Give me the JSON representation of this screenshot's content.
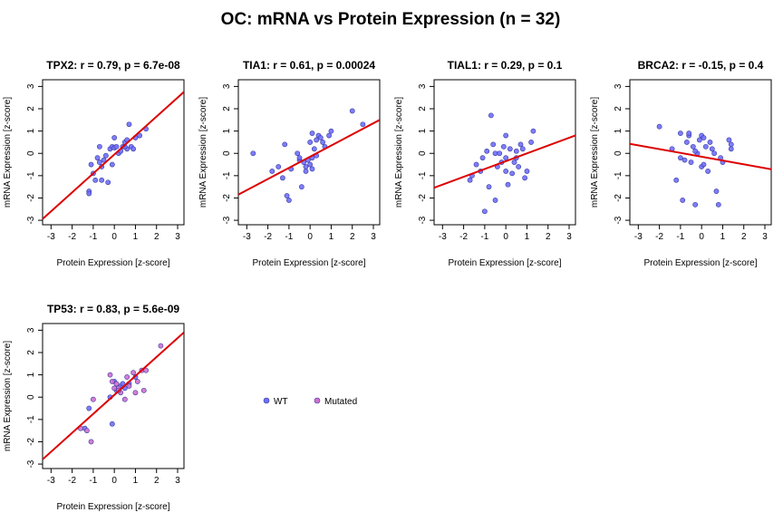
{
  "page_title": "OC: mRNA vs Protein Expression (n = 32)",
  "colors": {
    "wt": "#6f6fff",
    "mutated": "#d070d0",
    "fit": "#dd0000"
  },
  "legend": [
    {
      "label": "WT",
      "color": "#6f6fff"
    },
    {
      "label": "Mutated",
      "color": "#d070d0"
    }
  ],
  "chart_data": [
    {
      "type": "scatter",
      "title": "TPX2: r = 0.79, p = 6.7e-08",
      "xlabel": "Protein Expression [z-score]",
      "ylabel": "mRNA Expression [z-score]",
      "xlim": [
        -3.4,
        3.3
      ],
      "ylim": [
        -3.2,
        3.3
      ],
      "xticks": [
        -3,
        -2,
        -1,
        0,
        1,
        2,
        3
      ],
      "yticks": [
        -3,
        -2,
        -1,
        0,
        1,
        2,
        3
      ],
      "fit": {
        "slope": 0.85,
        "intercept": -0.05
      },
      "series": [
        {
          "group": "wt",
          "points": [
            [
              -1.2,
              -1.7
            ],
            [
              -1.2,
              -1.8
            ],
            [
              -1.1,
              -0.5
            ],
            [
              -1.0,
              -0.9
            ],
            [
              -0.9,
              -1.2
            ],
            [
              -0.8,
              -0.2
            ],
            [
              -0.7,
              -0.4
            ],
            [
              -0.7,
              0.3
            ],
            [
              -0.6,
              -0.6
            ],
            [
              -0.6,
              -1.2
            ],
            [
              -0.5,
              -0.3
            ],
            [
              -0.4,
              -0.1
            ],
            [
              -0.3,
              -1.3
            ],
            [
              -0.2,
              0.2
            ],
            [
              -0.1,
              0.3
            ],
            [
              0.0,
              0.25
            ],
            [
              0.0,
              0.7
            ],
            [
              0.1,
              0.3
            ],
            [
              0.2,
              0.0
            ],
            [
              0.3,
              0.1
            ],
            [
              0.4,
              0.3
            ],
            [
              0.5,
              0.5
            ],
            [
              0.6,
              0.2
            ],
            [
              0.6,
              0.6
            ],
            [
              0.7,
              1.3
            ],
            [
              0.8,
              0.3
            ],
            [
              0.9,
              0.2
            ],
            [
              1.0,
              0.7
            ],
            [
              1.2,
              0.8
            ],
            [
              1.5,
              1.1
            ],
            [
              -0.1,
              -0.5
            ],
            [
              0.5,
              0.3
            ]
          ]
        }
      ]
    },
    {
      "type": "scatter",
      "title": "TIA1: r = 0.61, p = 0.00024",
      "xlabel": "Protein Expression [z-score]",
      "ylabel": "mRNA Expression [z-score]",
      "xlim": [
        -3.4,
        3.3
      ],
      "ylim": [
        -3.2,
        3.3
      ],
      "xticks": [
        -3,
        -2,
        -1,
        0,
        1,
        2,
        3
      ],
      "yticks": [
        -3,
        -2,
        -1,
        0,
        1,
        2,
        3
      ],
      "fit": {
        "slope": 0.5,
        "intercept": -0.15
      },
      "series": [
        {
          "group": "wt",
          "points": [
            [
              -2.7,
              0.0
            ],
            [
              -1.8,
              -0.8
            ],
            [
              -1.5,
              -0.6
            ],
            [
              -1.3,
              -1.1
            ],
            [
              -1.2,
              0.4
            ],
            [
              -1.1,
              -1.9
            ],
            [
              -1.0,
              -2.1
            ],
            [
              -0.9,
              -0.7
            ],
            [
              -0.6,
              0.0
            ],
            [
              -0.5,
              -0.3
            ],
            [
              -0.4,
              -1.5
            ],
            [
              -0.3,
              -0.4
            ],
            [
              -0.2,
              -0.6
            ],
            [
              -0.1,
              -0.3
            ],
            [
              0.0,
              0.5
            ],
            [
              0.0,
              -0.5
            ],
            [
              0.1,
              0.9
            ],
            [
              0.1,
              -0.2
            ],
            [
              0.2,
              0.2
            ],
            [
              0.3,
              0.6
            ],
            [
              0.4,
              0.8
            ],
            [
              0.5,
              0.7
            ],
            [
              0.6,
              0.5
            ],
            [
              0.7,
              0.3
            ],
            [
              0.9,
              0.8
            ],
            [
              1.0,
              1.0
            ],
            [
              2.0,
              1.9
            ],
            [
              2.5,
              1.3
            ],
            [
              -0.2,
              -0.8
            ],
            [
              0.3,
              -0.1
            ],
            [
              -0.5,
              -0.2
            ],
            [
              0.1,
              -0.7
            ]
          ]
        }
      ]
    },
    {
      "type": "scatter",
      "title": "TIAL1: r = 0.29, p = 0.1",
      "xlabel": "Protein Expression [z-score]",
      "ylabel": "mRNA Expression [z-score]",
      "xlim": [
        -3.4,
        3.3
      ],
      "ylim": [
        -3.2,
        3.3
      ],
      "xticks": [
        -3,
        -2,
        -1,
        0,
        1,
        2,
        3
      ],
      "yticks": [
        -3,
        -2,
        -1,
        0,
        1,
        2,
        3
      ],
      "fit": {
        "slope": 0.35,
        "intercept": -0.35
      },
      "series": [
        {
          "group": "wt",
          "points": [
            [
              -1.7,
              -1.2
            ],
            [
              -1.6,
              -1.0
            ],
            [
              -1.4,
              -0.5
            ],
            [
              -1.2,
              -0.8
            ],
            [
              -1.0,
              -2.6
            ],
            [
              -0.9,
              0.1
            ],
            [
              -0.8,
              -1.5
            ],
            [
              -0.7,
              1.7
            ],
            [
              -0.6,
              0.4
            ],
            [
              -0.5,
              0.0
            ],
            [
              -0.4,
              -0.6
            ],
            [
              -0.3,
              0.0
            ],
            [
              -0.2,
              -0.4
            ],
            [
              -0.1,
              0.3
            ],
            [
              0.0,
              -0.2
            ],
            [
              0.0,
              -0.8
            ],
            [
              0.1,
              -1.4
            ],
            [
              0.2,
              0.2
            ],
            [
              0.3,
              -0.9
            ],
            [
              0.4,
              -0.4
            ],
            [
              0.5,
              0.1
            ],
            [
              0.6,
              -0.6
            ],
            [
              0.7,
              0.4
            ],
            [
              0.8,
              0.2
            ],
            [
              0.9,
              -1.1
            ],
            [
              1.0,
              -0.8
            ],
            [
              1.2,
              0.5
            ],
            [
              1.3,
              1.0
            ],
            [
              0.0,
              0.8
            ],
            [
              0.5,
              -0.2
            ],
            [
              -1.1,
              -0.2
            ],
            [
              -0.5,
              -2.1
            ]
          ]
        }
      ]
    },
    {
      "type": "scatter",
      "title": "BRCA2: r = -0.15, p = 0.4",
      "xlabel": "Protein Expression [z-score]",
      "ylabel": "mRNA Expression [z-score]",
      "xlim": [
        -3.4,
        3.3
      ],
      "ylim": [
        -3.2,
        3.3
      ],
      "xticks": [
        -3,
        -2,
        -1,
        0,
        1,
        2,
        3
      ],
      "yticks": [
        -3,
        -2,
        -1,
        0,
        1,
        2,
        3
      ],
      "fit": {
        "slope": -0.17,
        "intercept": -0.15
      },
      "series": [
        {
          "group": "wt",
          "points": [
            [
              -2.0,
              1.2
            ],
            [
              -1.4,
              0.2
            ],
            [
              -1.2,
              -1.2
            ],
            [
              -1.0,
              0.9
            ],
            [
              -1.0,
              -0.2
            ],
            [
              -0.9,
              -2.1
            ],
            [
              -0.8,
              -0.3
            ],
            [
              -0.7,
              0.5
            ],
            [
              -0.6,
              0.8
            ],
            [
              -0.6,
              0.9
            ],
            [
              -0.5,
              -0.4
            ],
            [
              -0.4,
              0.3
            ],
            [
              -0.3,
              -2.3
            ],
            [
              -0.2,
              0.0
            ],
            [
              -0.1,
              0.6
            ],
            [
              0.0,
              -0.6
            ],
            [
              0.0,
              0.8
            ],
            [
              0.1,
              -0.5
            ],
            [
              0.2,
              0.3
            ],
            [
              0.3,
              -0.8
            ],
            [
              0.4,
              0.5
            ],
            [
              0.5,
              0.2
            ],
            [
              0.6,
              0.0
            ],
            [
              0.7,
              -1.7
            ],
            [
              0.8,
              -2.3
            ],
            [
              0.9,
              -0.2
            ],
            [
              1.0,
              -0.4
            ],
            [
              1.3,
              0.6
            ],
            [
              1.4,
              0.2
            ],
            [
              1.4,
              0.4
            ],
            [
              -0.3,
              0.1
            ],
            [
              0.1,
              0.7
            ]
          ]
        }
      ]
    },
    {
      "type": "scatter",
      "title": "TP53: r = 0.83, p = 5.6e-09",
      "xlabel": "Protein Expression [z-score]",
      "ylabel": "mRNA Expression [z-score]",
      "xlim": [
        -3.4,
        3.3
      ],
      "ylim": [
        -3.2,
        3.3
      ],
      "xticks": [
        -3,
        -2,
        -1,
        0,
        1,
        2,
        3
      ],
      "yticks": [
        -3,
        -2,
        -1,
        0,
        1,
        2,
        3
      ],
      "fit": {
        "slope": 0.85,
        "intercept": 0.1
      },
      "series": [
        {
          "group": "wt",
          "points": [
            [
              -1.4,
              -1.4
            ],
            [
              -1.2,
              -0.5
            ],
            [
              -0.2,
              0.0
            ],
            [
              0.0,
              0.7
            ],
            [
              0.1,
              0.3
            ],
            [
              0.3,
              0.5
            ],
            [
              0.5,
              0.4
            ],
            [
              0.7,
              0.6
            ],
            [
              1.0,
              0.9
            ],
            [
              -0.1,
              -1.2
            ],
            [
              0.4,
              0.6
            ]
          ]
        },
        {
          "group": "mutated",
          "points": [
            [
              -1.6,
              -1.4
            ],
            [
              -1.3,
              -1.5
            ],
            [
              -1.1,
              -2.0
            ],
            [
              -1.0,
              -0.1
            ],
            [
              -0.2,
              1.0
            ],
            [
              -0.1,
              0.7
            ],
            [
              0.0,
              0.4
            ],
            [
              0.1,
              0.6
            ],
            [
              0.2,
              0.4
            ],
            [
              0.3,
              0.2
            ],
            [
              0.5,
              -0.1
            ],
            [
              0.6,
              0.9
            ],
            [
              0.7,
              0.5
            ],
            [
              0.9,
              1.1
            ],
            [
              1.0,
              0.2
            ],
            [
              1.1,
              0.7
            ],
            [
              1.3,
              1.2
            ],
            [
              1.4,
              0.3
            ],
            [
              1.5,
              1.2
            ],
            [
              2.2,
              2.3
            ],
            [
              0.2,
              0.3
            ]
          ]
        }
      ]
    }
  ]
}
